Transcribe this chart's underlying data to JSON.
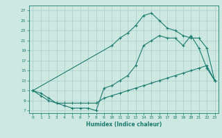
{
  "xlabel": "Humidex (Indice chaleur)",
  "bg_color": "#cce8e0",
  "grid_color": "#aacccc",
  "line_color": "#1a7a6e",
  "line1_x": [
    0,
    1,
    2,
    3,
    4,
    5,
    6,
    7,
    8,
    9,
    10,
    11,
    12,
    13,
    14,
    15,
    16,
    17,
    18,
    19,
    20,
    21,
    22,
    23
  ],
  "line1_y": [
    11,
    10,
    9,
    8.5,
    8,
    7.5,
    7.5,
    7.5,
    7,
    11.5,
    12,
    13,
    14,
    16,
    20,
    21,
    22,
    21.5,
    21.5,
    20,
    22,
    19.5,
    15.5,
    13
  ],
  "line2_x": [
    0,
    1,
    2,
    3,
    4,
    5,
    6,
    7,
    8,
    9,
    10,
    11,
    12,
    13,
    14,
    15,
    16,
    17,
    18,
    19,
    20,
    21,
    22,
    23
  ],
  "line2_y": [
    11,
    10.5,
    9.5,
    8.5,
    8.5,
    8.5,
    8.5,
    8.5,
    8.5,
    9.5,
    10,
    10.5,
    11,
    11.5,
    12,
    12.5,
    13,
    13.5,
    14,
    14.5,
    15,
    15.5,
    16,
    13
  ],
  "line3_x": [
    0,
    10,
    11,
    12,
    13,
    14,
    15,
    16,
    17,
    18,
    19,
    20,
    21,
    22,
    23
  ],
  "line3_y": [
    11,
    20,
    21.5,
    22.5,
    24,
    26,
    26.5,
    25,
    23.5,
    23,
    22,
    21.5,
    21.5,
    19.5,
    13
  ],
  "xlim": [
    -0.5,
    23.5
  ],
  "ylim": [
    6.5,
    28
  ],
  "yticks": [
    7,
    9,
    11,
    13,
    15,
    17,
    19,
    21,
    23,
    25,
    27
  ],
  "xticks": [
    0,
    1,
    2,
    3,
    4,
    5,
    6,
    7,
    8,
    9,
    10,
    11,
    12,
    13,
    14,
    15,
    16,
    17,
    18,
    19,
    20,
    21,
    22,
    23
  ]
}
